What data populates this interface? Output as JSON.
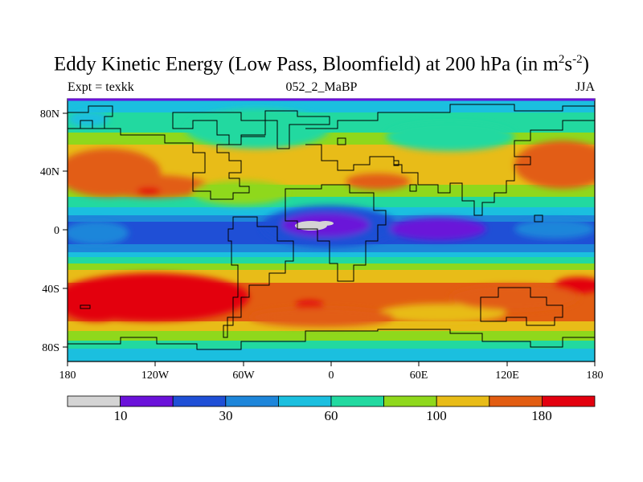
{
  "title": {
    "text": "Eddy Kinetic Energy (Low Pass, Bloomfield) at 200 hPa (in m",
    "sup1": "2",
    "mid": "s",
    "sup2": "-2",
    "end": ")"
  },
  "subtitle_left": "Expt = texkk",
  "subtitle_center": "052_2_MaBP",
  "subtitle_right": "JJA",
  "map": {
    "x_ticks": [
      "180",
      "120W",
      "60W",
      "0",
      "60E",
      "120E",
      "180"
    ],
    "y_ticks": [
      "80N",
      "40N",
      "0",
      "40S",
      "80S"
    ]
  },
  "colorbar": {
    "colors": [
      "#d4d4d4",
      "#6a12d9",
      "#1f4fd6",
      "#1e86da",
      "#1bbfdf",
      "#22d9a0",
      "#8fd81c",
      "#e8bc18",
      "#e25d12",
      "#e3000f"
    ],
    "labels": [
      "10",
      "30",
      "60",
      "100",
      "180"
    ]
  }
}
